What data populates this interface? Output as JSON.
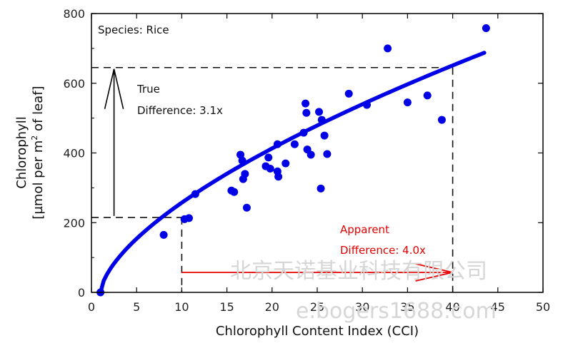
{
  "chart_data": {
    "type": "scatter",
    "xlabel": "Chlorophyll Content Index (CCI)",
    "ylabel_line1": "Chlorophyll",
    "ylabel_line2_pre": "[µmol per m",
    "ylabel_line2_sup": "2",
    "ylabel_line2_post": " of leaf]",
    "xlim": [
      0,
      50
    ],
    "ylim": [
      0,
      800
    ],
    "xticks": [
      0,
      5,
      10,
      15,
      20,
      25,
      30,
      35,
      40,
      45,
      50
    ],
    "yticks": [
      0,
      200,
      400,
      600,
      800
    ],
    "series": [
      {
        "color": "#0000e6",
        "points": [
          [
            1.0,
            0
          ],
          [
            8.0,
            165
          ],
          [
            10.3,
            210
          ],
          [
            10.8,
            213
          ],
          [
            11.5,
            282
          ],
          [
            15.5,
            292
          ],
          [
            15.8,
            288
          ],
          [
            16.5,
            395
          ],
          [
            16.7,
            378
          ],
          [
            16.8,
            325
          ],
          [
            17.0,
            340
          ],
          [
            17.2,
            243
          ],
          [
            19.3,
            362
          ],
          [
            19.6,
            387
          ],
          [
            19.8,
            355
          ],
          [
            20.6,
            425
          ],
          [
            20.6,
            347
          ],
          [
            20.7,
            332
          ],
          [
            21.5,
            370
          ],
          [
            22.5,
            425
          ],
          [
            23.5,
            458
          ],
          [
            23.7,
            542
          ],
          [
            23.8,
            515
          ],
          [
            23.9,
            410
          ],
          [
            24.3,
            395
          ],
          [
            25.2,
            518
          ],
          [
            25.4,
            298
          ],
          [
            25.5,
            495
          ],
          [
            25.8,
            450
          ],
          [
            26.1,
            397
          ],
          [
            28.5,
            570
          ],
          [
            30.5,
            538
          ],
          [
            32.8,
            700
          ],
          [
            35.0,
            545
          ],
          [
            37.2,
            565
          ],
          [
            38.8,
            495
          ],
          [
            43.7,
            758
          ]
        ]
      }
    ],
    "fit_curve": {
      "type": "power",
      "a": 64,
      "b": 0.6332,
      "x_shift": 1.0,
      "x_range": [
        1.0,
        43.5
      ],
      "color": "#0000e6"
    },
    "annotations": {
      "species": "Species: Rice",
      "true_diff_line1": "True",
      "true_diff_line2": "Difference: 3.1x",
      "apparent_line1": "Apparent",
      "apparent_line2": "Difference: 4.0x",
      "apparent_color": "#e60000",
      "ref_low_x": 10,
      "ref_low_y": 215,
      "ref_high_x": 40,
      "ref_high_y": 645,
      "true_arrow_x": 2.5
    }
  },
  "watermark": {
    "line1": "北京天诺基业科技有限公司",
    "line2": "e.bogers1688.com"
  }
}
